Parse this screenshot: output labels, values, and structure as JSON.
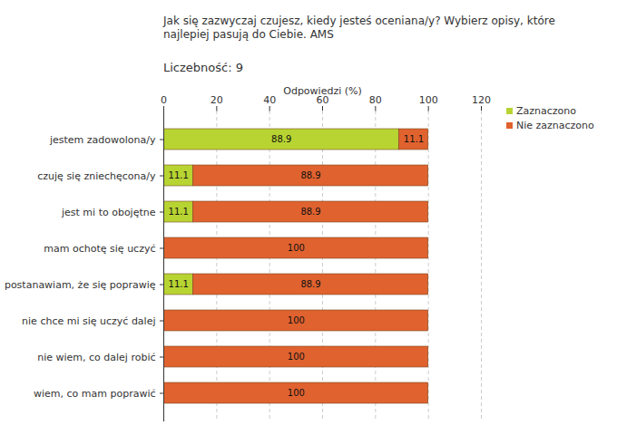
{
  "chart_data": {
    "type": "bar",
    "orientation": "horizontal",
    "stacked": true,
    "title": "Jak się zazwyczaj czujesz, kiedy jesteś oceniana/y? Wybierz opisy, które najlepiej pasują do Ciebie. AMS",
    "subtitle": "Liczebność: 9",
    "x_label": "Odpowiedzi (%)",
    "categories": [
      "jestem zadowolona/y",
      "czuję się zniechęcona/y",
      "jest mi to obojętne",
      "mam ochotę się uczyć",
      "postanawiam, że się poprawię",
      "nie chce mi się uczyć dalej",
      "nie wiem, co dalej robić",
      "wiem, co mam poprawić"
    ],
    "series": [
      {
        "name": "Zaznaczono",
        "color": "#b8d432",
        "values": [
          88.9,
          11.1,
          11.1,
          0,
          11.1,
          0,
          0,
          0
        ]
      },
      {
        "name": "Nie zaznaczono",
        "color": "#e0622f",
        "values": [
          11.1,
          88.9,
          88.9,
          100,
          88.9,
          100,
          100,
          100
        ]
      }
    ],
    "xlim": [
      0,
      120
    ],
    "xticks": [
      0,
      20,
      40,
      60,
      80,
      100,
      120
    ],
    "grid": true,
    "data_labels": true,
    "legend": "top-right"
  }
}
